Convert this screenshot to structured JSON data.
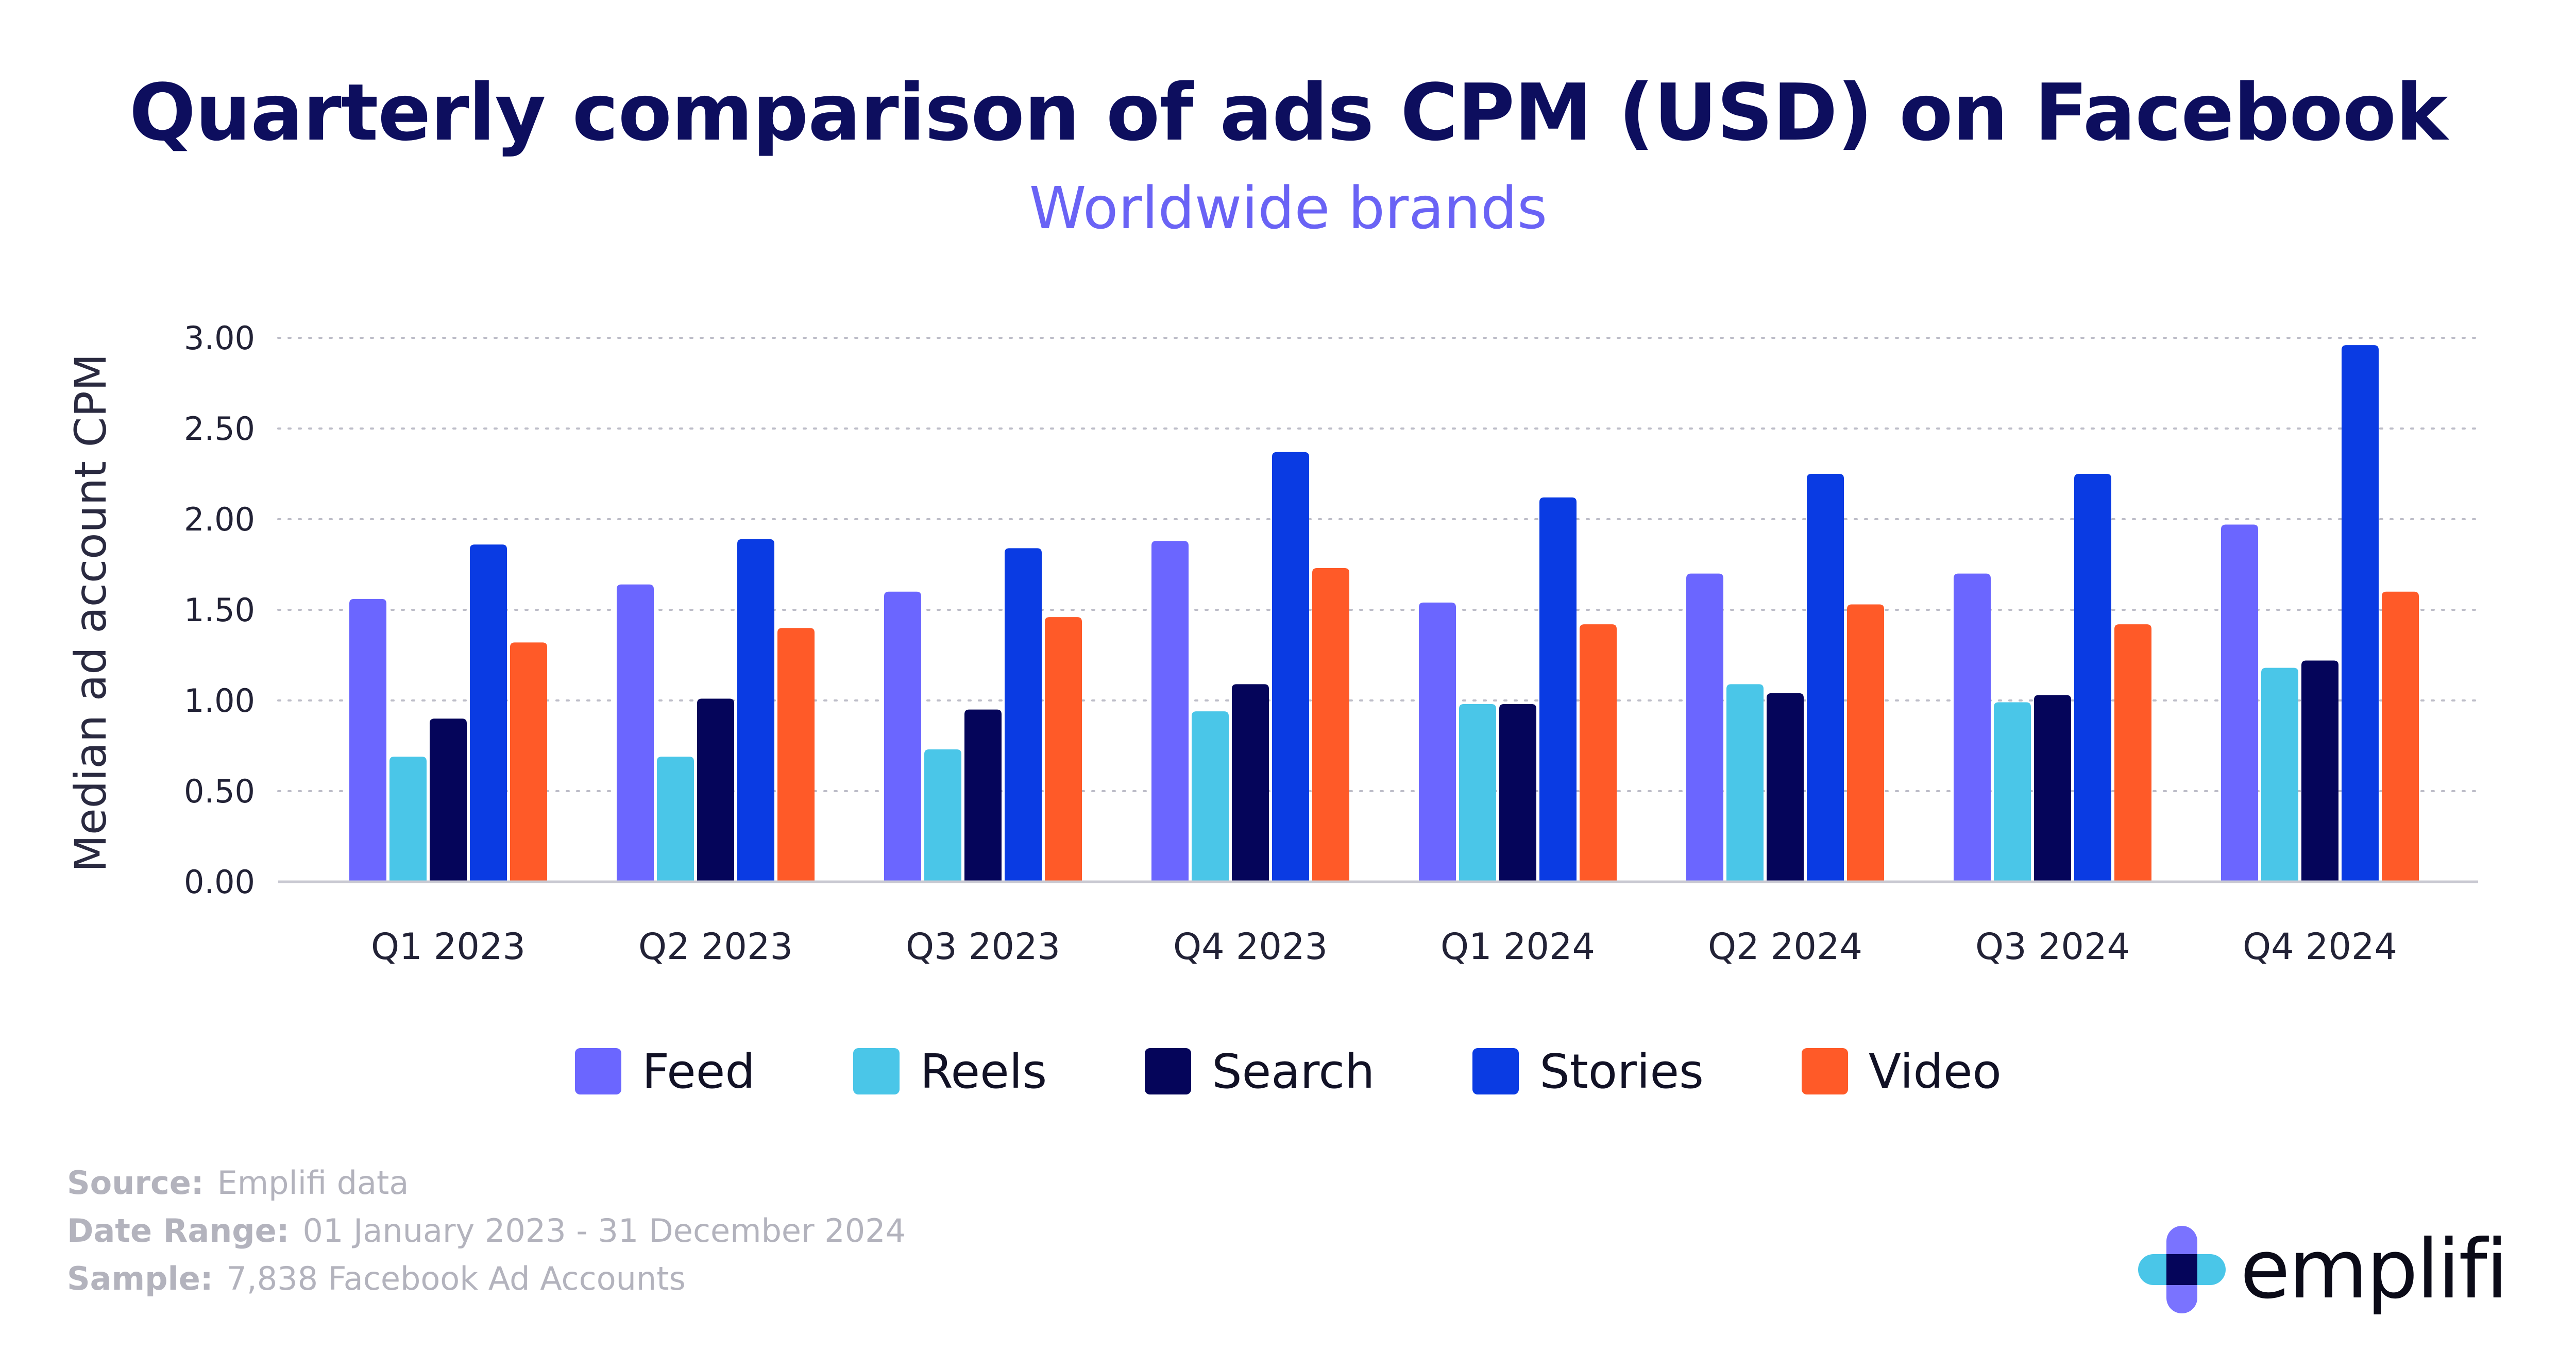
{
  "header": {
    "title": "Quarterly comparison of ads CPM (USD) on Facebook",
    "subtitle": "Worldwide brands"
  },
  "chart_data": {
    "type": "bar",
    "title": "Quarterly comparison of ads CPM (USD) on Facebook",
    "subtitle": "Worldwide brands",
    "xlabel": "",
    "ylabel": "Median ad account CPM",
    "ylim": [
      0,
      3
    ],
    "yticks": [
      "0.00",
      "0.50",
      "1.00",
      "1.50",
      "2.00",
      "2.50",
      "3.00"
    ],
    "grid": true,
    "legend_position": "bottom",
    "categories": [
      "Q1 2023",
      "Q2 2023",
      "Q3 2023",
      "Q4 2023",
      "Q1 2024",
      "Q2 2024",
      "Q3 2024",
      "Q4 2024"
    ],
    "series": [
      {
        "name": "Feed",
        "color": "#6b66ff",
        "values": [
          1.56,
          1.64,
          1.6,
          1.88,
          1.54,
          1.7,
          1.7,
          1.97
        ]
      },
      {
        "name": "Reels",
        "color": "#4ac6e8",
        "values": [
          0.69,
          0.69,
          0.73,
          0.94,
          0.98,
          1.09,
          0.99,
          1.18
        ]
      },
      {
        "name": "Search",
        "color": "#05055a",
        "values": [
          0.9,
          1.01,
          0.95,
          1.09,
          0.98,
          1.04,
          1.03,
          1.22
        ]
      },
      {
        "name": "Stories",
        "color": "#0a3be3",
        "values": [
          1.86,
          1.89,
          1.84,
          2.37,
          2.12,
          2.25,
          2.25,
          2.96
        ]
      },
      {
        "name": "Video",
        "color": "#ff5a28",
        "values": [
          1.32,
          1.4,
          1.46,
          1.73,
          1.42,
          1.53,
          1.42,
          1.6
        ]
      }
    ]
  },
  "footer": {
    "source_label": "Source:",
    "source_value": "Emplifi data",
    "range_label": "Date Range:",
    "range_value": "01 January 2023 - 31 December 2024",
    "sample_label": "Sample:",
    "sample_value": "7,838 Facebook Ad Accounts"
  },
  "brand": {
    "name": "emplifi",
    "icon": "emplifi-logo-icon"
  }
}
